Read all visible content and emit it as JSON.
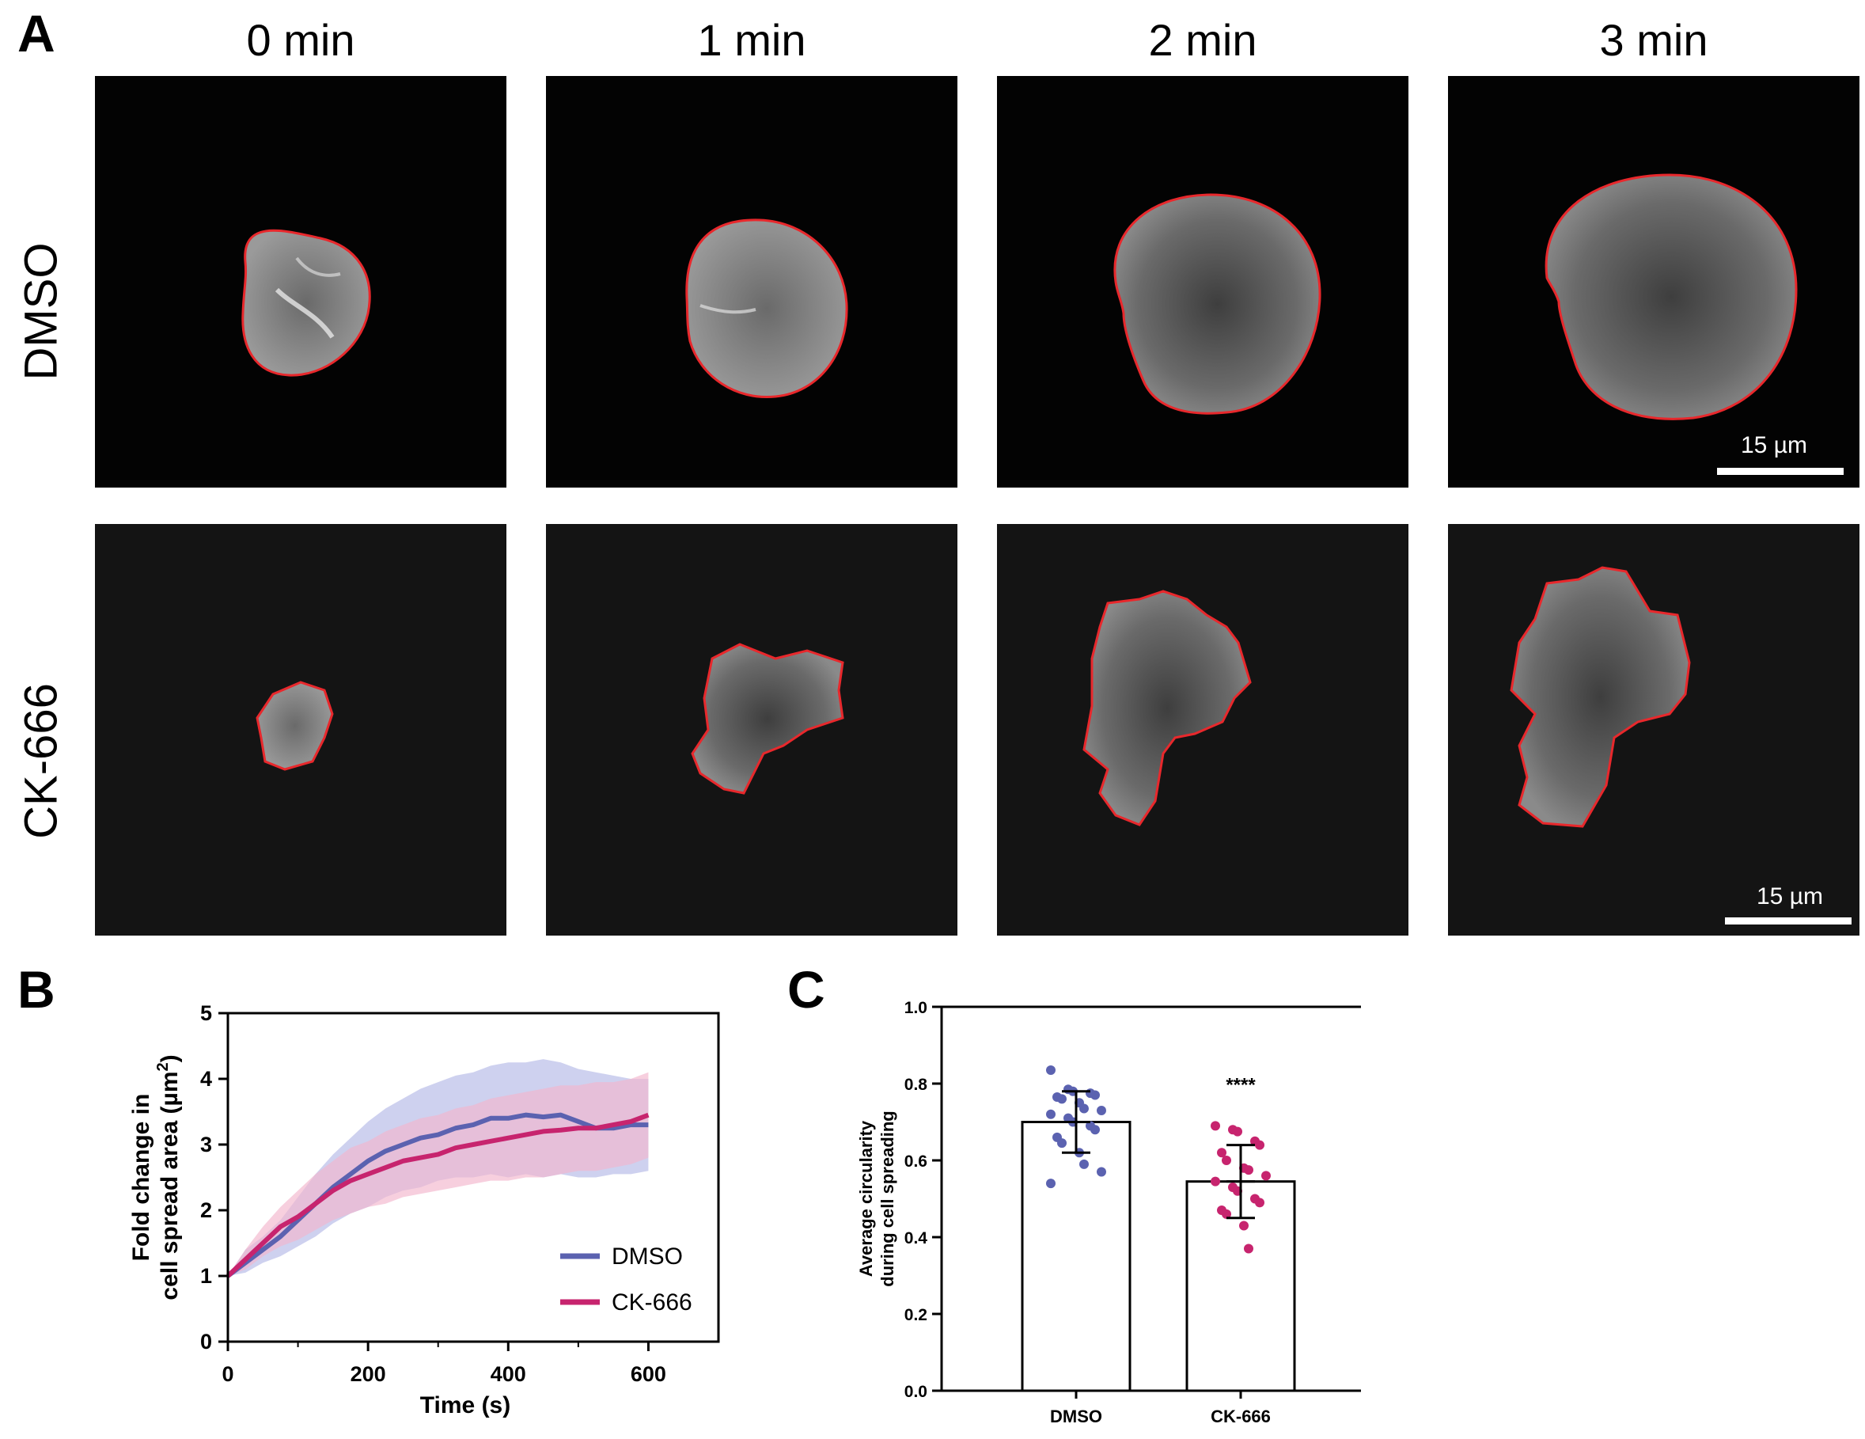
{
  "panels": {
    "a": "A",
    "b": "B",
    "c": "C"
  },
  "panel_a": {
    "time_labels": [
      "0 min",
      "1 min",
      "2 min",
      "3 min"
    ],
    "row_labels": [
      "DMSO",
      "CK-666"
    ],
    "scale_bar_label": "15 µm",
    "outline_color": "#e8282c"
  },
  "chart_data": [
    {
      "type": "line",
      "panel": "B",
      "xlabel": "Time (s)",
      "ylabel_line1": "Fold change in",
      "ylabel_line2": "cell spread area (µm",
      "ylabel_sup": "2",
      "ylabel_close": ")",
      "xlim": [
        0,
        700
      ],
      "ylim": [
        0,
        5
      ],
      "xticks": [
        0,
        200,
        400,
        600
      ],
      "yticks": [
        0,
        1,
        2,
        3,
        4,
        5
      ],
      "legend_position": "bottom-right",
      "series": [
        {
          "name": "DMSO",
          "color": "#5b62b0",
          "band_color": "#b4b8e6",
          "x": [
            0,
            25,
            50,
            75,
            100,
            125,
            150,
            175,
            200,
            225,
            250,
            275,
            300,
            325,
            350,
            375,
            400,
            425,
            450,
            475,
            500,
            525,
            550,
            575,
            600
          ],
          "y": [
            1.0,
            1.2,
            1.4,
            1.6,
            1.85,
            2.1,
            2.35,
            2.55,
            2.75,
            2.9,
            3.0,
            3.1,
            3.15,
            3.25,
            3.3,
            3.4,
            3.4,
            3.45,
            3.42,
            3.45,
            3.35,
            3.25,
            3.25,
            3.3,
            3.3
          ],
          "lower": [
            1.0,
            1.05,
            1.2,
            1.3,
            1.45,
            1.6,
            1.8,
            1.95,
            2.05,
            2.2,
            2.3,
            2.35,
            2.45,
            2.5,
            2.5,
            2.55,
            2.5,
            2.55,
            2.5,
            2.55,
            2.5,
            2.5,
            2.55,
            2.55,
            2.6
          ],
          "upper": [
            1.0,
            1.4,
            1.6,
            1.85,
            2.2,
            2.55,
            2.85,
            3.1,
            3.35,
            3.55,
            3.7,
            3.85,
            3.95,
            4.05,
            4.1,
            4.2,
            4.25,
            4.25,
            4.3,
            4.25,
            4.15,
            4.1,
            4.05,
            4.0,
            4.0
          ]
        },
        {
          "name": "CK-666",
          "color": "#c7246e",
          "band_color": "#f2b6cc",
          "x": [
            0,
            25,
            50,
            75,
            100,
            125,
            150,
            175,
            200,
            225,
            250,
            275,
            300,
            325,
            350,
            375,
            400,
            425,
            450,
            475,
            500,
            525,
            550,
            575,
            600
          ],
          "y": [
            1.0,
            1.25,
            1.5,
            1.75,
            1.9,
            2.1,
            2.3,
            2.45,
            2.55,
            2.65,
            2.75,
            2.8,
            2.85,
            2.95,
            3.0,
            3.05,
            3.1,
            3.15,
            3.2,
            3.22,
            3.25,
            3.25,
            3.3,
            3.35,
            3.45
          ],
          "lower": [
            1.0,
            1.1,
            1.3,
            1.45,
            1.55,
            1.7,
            1.85,
            1.95,
            2.05,
            2.1,
            2.2,
            2.25,
            2.3,
            2.35,
            2.4,
            2.45,
            2.45,
            2.5,
            2.5,
            2.55,
            2.6,
            2.6,
            2.65,
            2.7,
            2.8
          ],
          "upper": [
            1.0,
            1.4,
            1.75,
            2.05,
            2.3,
            2.55,
            2.75,
            2.95,
            3.05,
            3.2,
            3.3,
            3.4,
            3.45,
            3.55,
            3.6,
            3.7,
            3.75,
            3.8,
            3.85,
            3.9,
            3.9,
            3.95,
            3.95,
            4.0,
            4.1
          ]
        }
      ]
    },
    {
      "type": "bar",
      "panel": "C",
      "categories": [
        "DMSO",
        "CK-666"
      ],
      "ylabel_line1": "Average circularity",
      "ylabel_line2": "during cell spreading",
      "ylim": [
        0,
        1.0
      ],
      "yticks": [
        0.0,
        0.2,
        0.4,
        0.6,
        0.8,
        1.0
      ],
      "ytick_labels": [
        "0.0",
        "0.2",
        "0.4",
        "0.6",
        "0.8",
        "1.0"
      ],
      "means": [
        0.7,
        0.545
      ],
      "sd": [
        0.08,
        0.095
      ],
      "significance": "****",
      "point_colors": [
        "#5b62b0",
        "#c7246e"
      ],
      "points": [
        [
          0.835,
          0.785,
          0.78,
          0.775,
          0.77,
          0.765,
          0.76,
          0.75,
          0.735,
          0.73,
          0.72,
          0.71,
          0.7,
          0.69,
          0.68,
          0.66,
          0.645,
          0.62,
          0.59,
          0.57,
          0.54
        ],
        [
          0.69,
          0.68,
          0.675,
          0.65,
          0.64,
          0.62,
          0.6,
          0.58,
          0.575,
          0.56,
          0.545,
          0.53,
          0.52,
          0.5,
          0.49,
          0.47,
          0.46,
          0.43,
          0.37
        ]
      ]
    }
  ]
}
